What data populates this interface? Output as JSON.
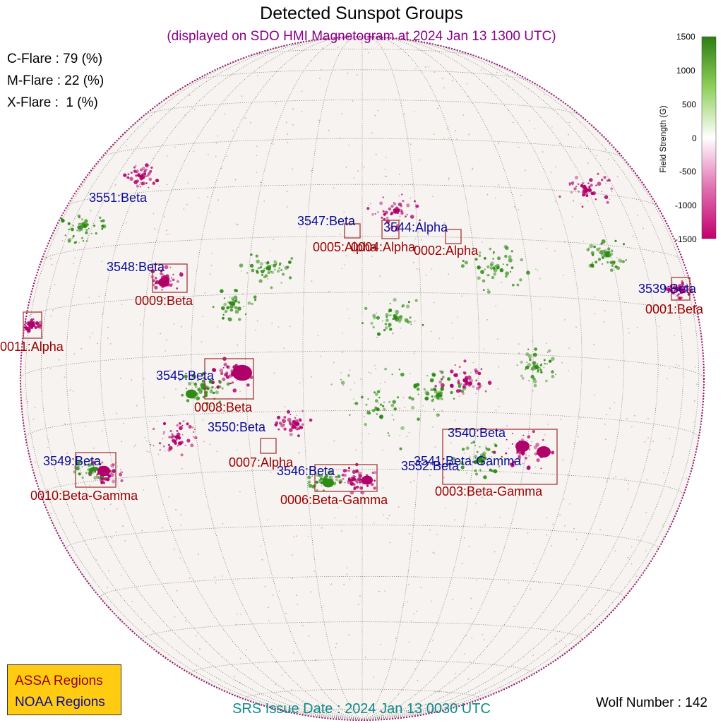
{
  "title": "Detected Sunspot Groups",
  "subtitle": "(displayed on SDO HMI Magnetogram at 2024 Jan 13 1300 UTC)",
  "flare_probabilities": [
    {
      "label": "C-Flare : 79 (%)"
    },
    {
      "label": "M-Flare : 22 (%)"
    },
    {
      "label": "X-Flare :  1 (%)"
    }
  ],
  "colorbar": {
    "title": "Field Strength (G)",
    "ticks": [
      "1500",
      "1000",
      "500",
      "0",
      "-500",
      "-1000",
      "-1500"
    ],
    "colors": {
      "positive": "#2d7d12",
      "zero": "#ffffff",
      "negative": "#c2006e"
    }
  },
  "noaa_regions": [
    {
      "label": "3551:Beta"
    },
    {
      "label": "3547:Beta"
    },
    {
      "label": "3544:Alpha"
    },
    {
      "label": "3548:Beta"
    },
    {
      "label": "3539:Beta"
    },
    {
      "label": "3545:Beta"
    },
    {
      "label": "3550:Beta"
    },
    {
      "label": "3540:Beta"
    },
    {
      "label": "3549:Beta"
    },
    {
      "label": "3541:Beta-Gamma"
    },
    {
      "label": "3552:Beta"
    },
    {
      "label": "3546:Beta"
    }
  ],
  "assa_regions": [
    {
      "label": "0005:Alpha"
    },
    {
      "label": "0004:Alpha"
    },
    {
      "label": "0002:Alpha"
    },
    {
      "label": "0009:Beta"
    },
    {
      "label": "0001:Beta"
    },
    {
      "label": "0011:Alpha"
    },
    {
      "label": "0008:Beta"
    },
    {
      "label": "0007:Alpha"
    },
    {
      "label": "0010:Beta-Gamma"
    },
    {
      "label": "0006:Beta-Gamma"
    },
    {
      "label": "0003:Beta-Gamma"
    }
  ],
  "legend": {
    "assa": "ASSA Regions",
    "noaa": "NOAA Regions"
  },
  "srs_issue": "SRS Issue Date : 2024 Jan 13 0030 UTC",
  "wolf_number": "Wolf Number : 142",
  "colors": {
    "noaa_text": "#0b0b9a",
    "assa_text": "#990000",
    "box": "#a33a3a",
    "legend_bg": "#ffcc11"
  }
}
